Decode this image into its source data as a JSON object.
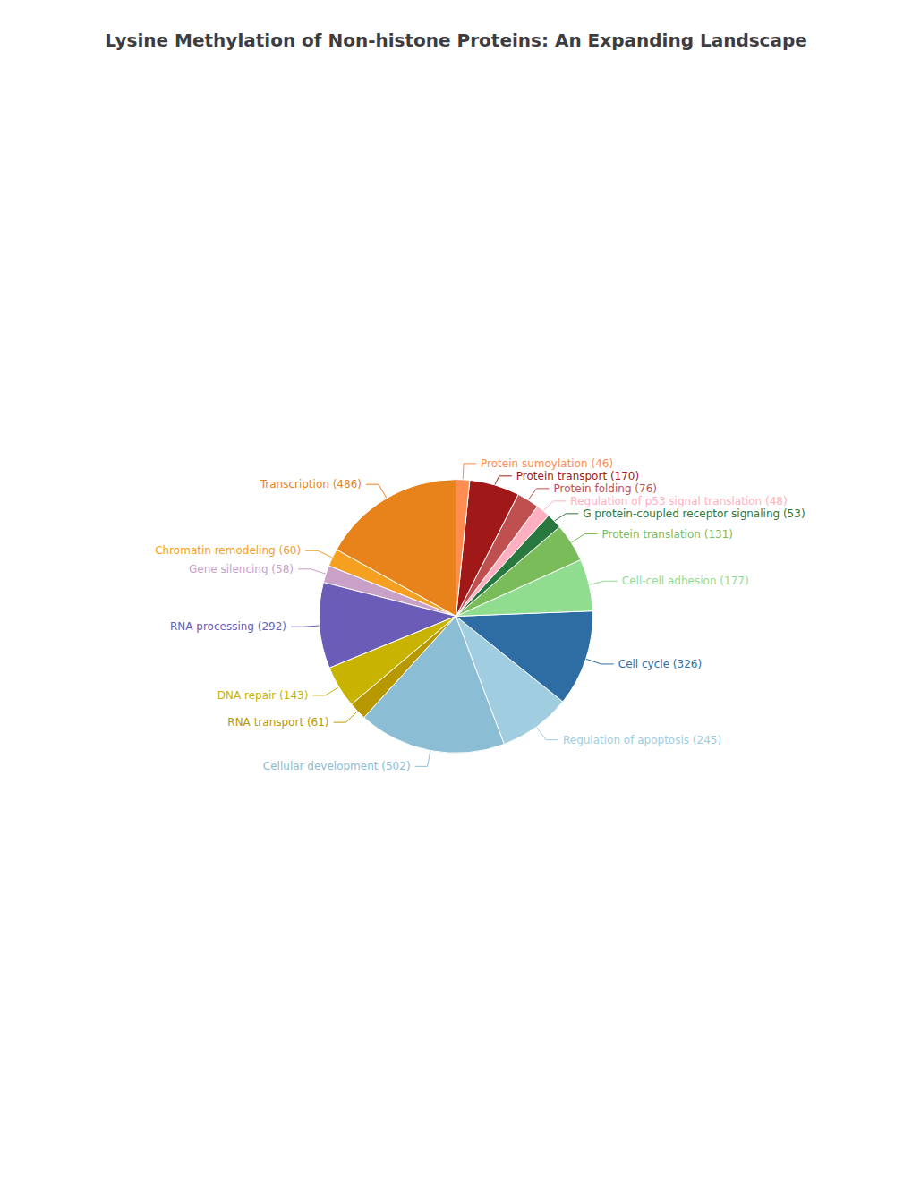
{
  "chart_data": {
    "type": "pie",
    "title": "Lysine Methylation of Non-histone Proteins: An Expanding Landscape",
    "categories": [
      "Transcription (486)",
      "Chromatin remodeling (60)",
      "Gene silencing (58)",
      "RNA processing (292)",
      "DNA repair (143)",
      "RNA transport (61)",
      "Cellular development (502)",
      "Regulation of apoptosis (245)",
      "Cell cycle (326)",
      "Cell-cell adhesion (177)",
      "Protein translation (131)",
      "G protein-coupled receptor signaling (53)",
      "Regulation of p53 signal translation (48)",
      "Protein folding (76)",
      "Protein transport (170)",
      "Protein sumoylation (46)"
    ],
    "values": [
      486,
      60,
      58,
      292,
      143,
      61,
      502,
      245,
      326,
      177,
      131,
      53,
      48,
      76,
      170,
      46
    ],
    "colors": [
      "#E8821A",
      "#F5A020",
      "#C8A0C8",
      "#6B5CB8",
      "#C8B400",
      "#B89800",
      "#8BBDD4",
      "#A0CDE0",
      "#2E6DA4",
      "#90DD90",
      "#7ABB5A",
      "#287840",
      "#FFB0C0",
      "#C05050",
      "#A01818",
      "#FF8C50"
    ],
    "legend": false
  }
}
